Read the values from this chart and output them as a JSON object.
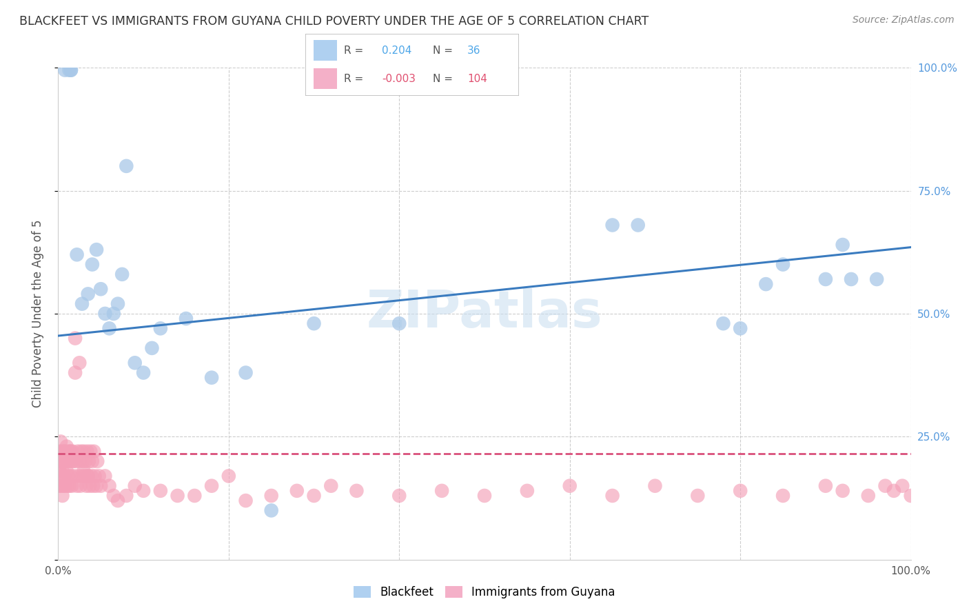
{
  "title": "BLACKFEET VS IMMIGRANTS FROM GUYANA CHILD POVERTY UNDER THE AGE OF 5 CORRELATION CHART",
  "source": "Source: ZipAtlas.com",
  "ylabel": "Child Poverty Under the Age of 5",
  "xlim": [
    0.0,
    1.0
  ],
  "ylim": [
    0.0,
    1.0
  ],
  "background_color": "#ffffff",
  "grid_color": "#cccccc",
  "watermark": "ZIPatlas",
  "blackfeet_R": "0.204",
  "blackfeet_N": "36",
  "guyana_R": "-0.003",
  "guyana_N": "104",
  "blackfeet_color": "#a8c8e8",
  "guyana_color": "#f4a0b8",
  "blackfeet_line_color": "#3a7bbf",
  "guyana_line_color": "#d94f7a",
  "blackfeet_label_color": "#4da6e8",
  "guyana_label_color": "#e05070",
  "tick_color": "#5599dd",
  "blackfeet_line_y0": 0.455,
  "blackfeet_line_y1": 0.635,
  "guyana_line_y0": 0.215,
  "guyana_line_y1": 0.215,
  "blackfeet_x": [
    0.008,
    0.013,
    0.015,
    0.015,
    0.022,
    0.028,
    0.035,
    0.04,
    0.045,
    0.05,
    0.055,
    0.06,
    0.065,
    0.07,
    0.075,
    0.08,
    0.09,
    0.1,
    0.11,
    0.12,
    0.15,
    0.18,
    0.22,
    0.25,
    0.3,
    0.4,
    0.65,
    0.68,
    0.78,
    0.8,
    0.83,
    0.85,
    0.9,
    0.92,
    0.93,
    0.96
  ],
  "blackfeet_y": [
    0.995,
    0.995,
    0.995,
    0.995,
    0.62,
    0.52,
    0.54,
    0.6,
    0.63,
    0.55,
    0.5,
    0.47,
    0.5,
    0.52,
    0.58,
    0.8,
    0.4,
    0.38,
    0.43,
    0.47,
    0.49,
    0.37,
    0.38,
    0.1,
    0.48,
    0.48,
    0.68,
    0.68,
    0.48,
    0.47,
    0.56,
    0.6,
    0.57,
    0.64,
    0.57,
    0.57
  ],
  "guyana_x": [
    0.001,
    0.001,
    0.001,
    0.002,
    0.002,
    0.003,
    0.003,
    0.003,
    0.004,
    0.004,
    0.005,
    0.005,
    0.005,
    0.006,
    0.006,
    0.007,
    0.007,
    0.008,
    0.008,
    0.009,
    0.009,
    0.01,
    0.01,
    0.011,
    0.011,
    0.012,
    0.012,
    0.013,
    0.013,
    0.014,
    0.015,
    0.015,
    0.016,
    0.016,
    0.017,
    0.018,
    0.019,
    0.02,
    0.021,
    0.022,
    0.023,
    0.024,
    0.025,
    0.026,
    0.027,
    0.028,
    0.029,
    0.03,
    0.031,
    0.032,
    0.033,
    0.034,
    0.035,
    0.036,
    0.037,
    0.038,
    0.039,
    0.04,
    0.041,
    0.042,
    0.043,
    0.045,
    0.046,
    0.048,
    0.05,
    0.055,
    0.06,
    0.065,
    0.07,
    0.08,
    0.09,
    0.1,
    0.12,
    0.14,
    0.16,
    0.18,
    0.2,
    0.22,
    0.25,
    0.28,
    0.3,
    0.32,
    0.35,
    0.4,
    0.45,
    0.5,
    0.55,
    0.6,
    0.65,
    0.7,
    0.75,
    0.8,
    0.85,
    0.9,
    0.92,
    0.95,
    0.97,
    0.98,
    0.99,
    1.0,
    0.02,
    0.025,
    0.03,
    0.035
  ],
  "guyana_y": [
    0.21,
    0.18,
    0.15,
    0.22,
    0.18,
    0.24,
    0.2,
    0.15,
    0.2,
    0.16,
    0.22,
    0.18,
    0.13,
    0.2,
    0.15,
    0.22,
    0.17,
    0.2,
    0.15,
    0.22,
    0.16,
    0.23,
    0.18,
    0.2,
    0.15,
    0.22,
    0.17,
    0.2,
    0.15,
    0.22,
    0.22,
    0.17,
    0.2,
    0.15,
    0.22,
    0.2,
    0.17,
    0.45,
    0.2,
    0.15,
    0.22,
    0.17,
    0.2,
    0.15,
    0.22,
    0.17,
    0.2,
    0.22,
    0.17,
    0.2,
    0.15,
    0.22,
    0.17,
    0.2,
    0.15,
    0.22,
    0.17,
    0.2,
    0.15,
    0.22,
    0.17,
    0.15,
    0.2,
    0.17,
    0.15,
    0.17,
    0.15,
    0.13,
    0.12,
    0.13,
    0.15,
    0.14,
    0.14,
    0.13,
    0.13,
    0.15,
    0.17,
    0.12,
    0.13,
    0.14,
    0.13,
    0.15,
    0.14,
    0.13,
    0.14,
    0.13,
    0.14,
    0.15,
    0.13,
    0.15,
    0.13,
    0.14,
    0.13,
    0.15,
    0.14,
    0.13,
    0.15,
    0.14,
    0.15,
    0.13,
    0.38,
    0.4,
    0.18,
    0.17
  ]
}
